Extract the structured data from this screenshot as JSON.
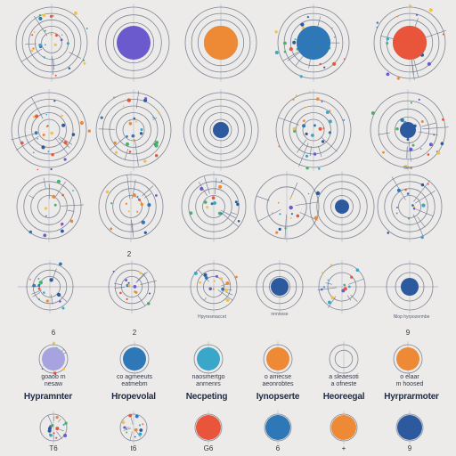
{
  "colors": {
    "background": "#ecebea",
    "ring": "#5b6478",
    "purple": "#6a5acd",
    "orange": "#ee8a35",
    "blue": "#2e78b8",
    "red": "#e8553a",
    "navy": "#2d5a9e",
    "cyan": "#3aa6c9",
    "lavender": "#a7a3e0"
  },
  "rows": [
    {
      "cells": [
        {
          "fill": "",
          "rings": 5,
          "scatter": true
        },
        {
          "fill": "purple",
          "rings": 4,
          "scatter": false
        },
        {
          "fill": "orange",
          "rings": 5,
          "scatter": false
        },
        {
          "fill": "blue",
          "rings": 5,
          "scatter": true
        },
        {
          "fill": "red",
          "rings": 5,
          "scatter": true
        }
      ]
    },
    {
      "cells": [
        {
          "fill": "",
          "rings": 5,
          "scatter": true
        },
        {
          "fill": "",
          "rings": 5,
          "scatter": true
        },
        {
          "fill": "navy",
          "rings": 5,
          "scatter": false
        },
        {
          "fill": "",
          "rings": 5,
          "scatter": true
        },
        {
          "fill": "navy",
          "rings": 4,
          "scatter": true
        }
      ]
    },
    {
      "cells": [
        {
          "fill": "",
          "rings": 4,
          "scatter": true
        },
        {
          "fill": "",
          "rings": 4,
          "scatter": true
        },
        {
          "fill": "",
          "rings": 4,
          "scatter": true
        },
        {
          "fill": "",
          "rings": 2,
          "scatter": true
        },
        {
          "fill": "navy",
          "rings": 4,
          "scatter": false
        },
        {
          "fill": "",
          "rings": 4,
          "scatter": true
        }
      ]
    },
    {
      "cells": [
        {
          "fill": "",
          "rings": 3,
          "scatter": true
        },
        {
          "fill": "",
          "rings": 3,
          "scatter": true
        },
        {
          "fill": "",
          "rings": 3,
          "scatter": true
        },
        {
          "fill": "navy",
          "rings": 3,
          "scatter": false
        },
        {
          "fill": "",
          "rings": 2,
          "scatter": true
        },
        {
          "fill": "navy",
          "rings": 2,
          "scatter": false
        }
      ]
    },
    {
      "cells": [
        {
          "fill": "lavender",
          "rings": 1,
          "scatter": true
        },
        {
          "fill": "blue",
          "rings": 1,
          "scatter": false
        },
        {
          "fill": "cyan",
          "rings": 1,
          "scatter": false
        },
        {
          "fill": "orange",
          "rings": 1,
          "scatter": false
        },
        {
          "fill": "",
          "rings": 2,
          "scatter": false
        },
        {
          "fill": "orange",
          "rings": 1,
          "scatter": false
        }
      ]
    },
    {
      "cells": [
        {
          "fill": "",
          "rings": 1,
          "scatter": true
        },
        {
          "fill": "",
          "rings": 1,
          "scatter": true
        },
        {
          "fill": "red",
          "rings": 1,
          "scatter": false
        },
        {
          "fill": "blue",
          "rings": 1,
          "scatter": false
        },
        {
          "fill": "orange",
          "rings": 1,
          "scatter": false
        },
        {
          "fill": "navy",
          "rings": 1,
          "scatter": false
        }
      ]
    }
  ],
  "labels": {
    "r3_num": "2",
    "r4_under_3": "Hpyresmaccet",
    "r4_under_4": "nnnoose",
    "r4_under_6": "Nlop hyrpozermbe",
    "r2_tiny": "fsea",
    "r5_top_1": "6",
    "r5_top_2": "2",
    "r5_top_6": "9",
    "r5_small_1a": "goaob   m",
    "r5_small_1b": "nesaw",
    "r5_small_2a": "co agmeeuts",
    "r5_small_2b": "eatmebm",
    "r5_small_3a": "naosmertgo",
    "r5_small_3b": "anrnenrs",
    "r5_small_4a": "o   amecse",
    "r5_small_4b": "aeonrobtes",
    "r5_small_5a": "a sleaesoti",
    "r5_small_5b": "a ofneste",
    "r5_small_6a": "o  elaar",
    "r5_small_6b": "m  hoosed",
    "r5_big_1": "Hypramnter",
    "r5_big_2": "Hropevolal",
    "r5_big_3": "Necpeting",
    "r5_big_4": "Iynopserte",
    "r5_big_5": "Heoreegal",
    "r5_big_6": "Hyrprarmoter",
    "r6_bot_1": "T6",
    "r6_bot_2": "t6",
    "r6_bot_3": "G6",
    "r6_bot_4": "6",
    "r6_bot_5": "+",
    "r6_bot_6": "9"
  }
}
